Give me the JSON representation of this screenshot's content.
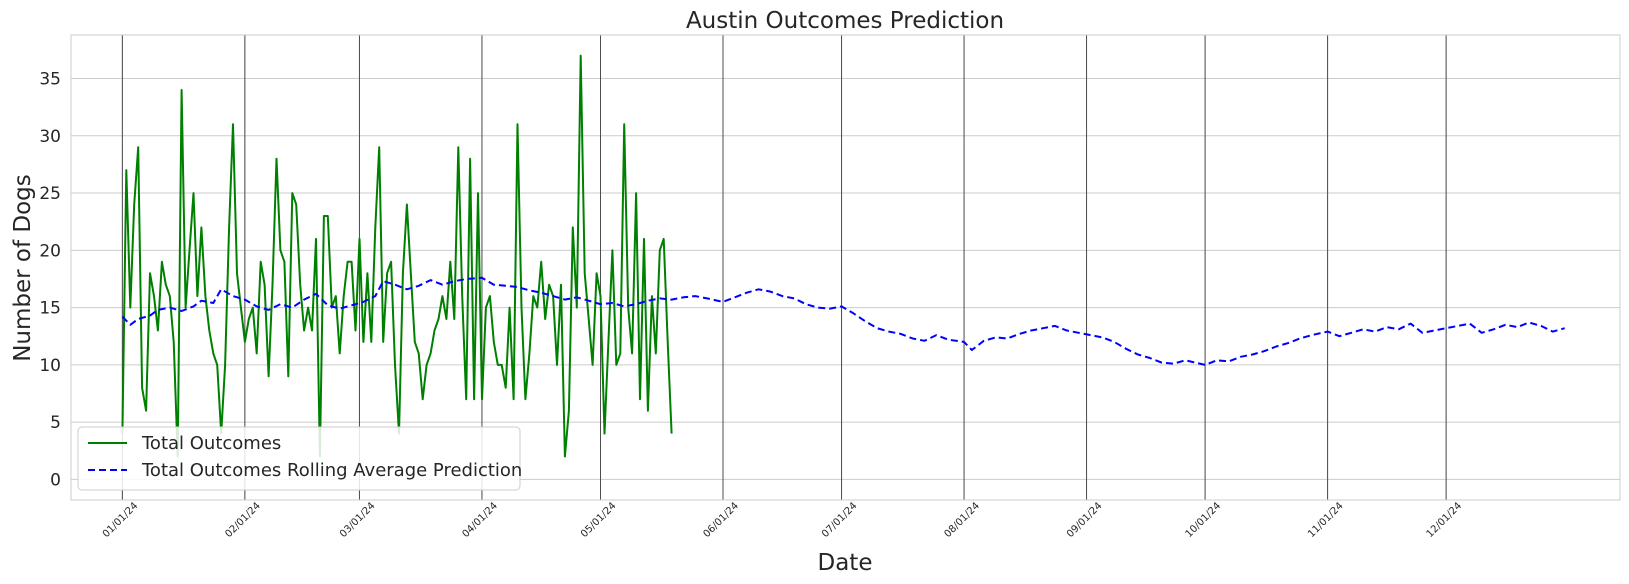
{
  "chart_data": {
    "type": "line",
    "title": "Austin Outcomes Prediction",
    "xlabel": "Date",
    "ylabel": "Number of Dogs",
    "x_type": "date",
    "xlim": [
      "2023-12-19",
      "2025-01-14"
    ],
    "ylim": [
      -1.8,
      38.8
    ],
    "y_ticks": [
      0,
      5,
      10,
      15,
      20,
      25,
      30,
      35
    ],
    "x_ticks": [
      {
        "date": "2024-01-01",
        "label": "01/01/24"
      },
      {
        "date": "2024-02-01",
        "label": "02/01/24"
      },
      {
        "date": "2024-03-01",
        "label": "03/01/24"
      },
      {
        "date": "2024-04-01",
        "label": "04/01/24"
      },
      {
        "date": "2024-05-01",
        "label": "05/01/24"
      },
      {
        "date": "2024-06-01",
        "label": "06/01/24"
      },
      {
        "date": "2024-07-01",
        "label": "07/01/24"
      },
      {
        "date": "2024-08-01",
        "label": "08/01/24"
      },
      {
        "date": "2024-09-01",
        "label": "09/01/24"
      },
      {
        "date": "2024-10-01",
        "label": "10/01/24"
      },
      {
        "date": "2024-11-01",
        "label": "11/01/24"
      },
      {
        "date": "2024-12-01",
        "label": "12/01/24"
      }
    ],
    "grid": true,
    "month_lines": [
      "2024-01-01",
      "2024-02-01",
      "2024-03-01",
      "2024-04-01",
      "2024-05-01",
      "2024-06-01",
      "2024-07-01",
      "2024-08-01",
      "2024-09-01",
      "2024-10-01",
      "2024-11-01",
      "2024-12-01"
    ],
    "legend_position": "bottom-left",
    "series": [
      {
        "name": "Total Outcomes",
        "color": "#008000",
        "dash": "solid",
        "points": [
          [
            "2024-01-01",
            4
          ],
          [
            "2024-01-02",
            27
          ],
          [
            "2024-01-03",
            15
          ],
          [
            "2024-01-04",
            24
          ],
          [
            "2024-01-05",
            29
          ],
          [
            "2024-01-06",
            8
          ],
          [
            "2024-01-07",
            6
          ],
          [
            "2024-01-08",
            18
          ],
          [
            "2024-01-09",
            16
          ],
          [
            "2024-01-10",
            13
          ],
          [
            "2024-01-11",
            19
          ],
          [
            "2024-01-12",
            17
          ],
          [
            "2024-01-13",
            16
          ],
          [
            "2024-01-14",
            12
          ],
          [
            "2024-01-15",
            2
          ],
          [
            "2024-01-16",
            34
          ],
          [
            "2024-01-17",
            15
          ],
          [
            "2024-01-18",
            20
          ],
          [
            "2024-01-19",
            25
          ],
          [
            "2024-01-20",
            16
          ],
          [
            "2024-01-21",
            22
          ],
          [
            "2024-01-22",
            16
          ],
          [
            "2024-01-23",
            13
          ],
          [
            "2024-01-24",
            11
          ],
          [
            "2024-01-25",
            10
          ],
          [
            "2024-01-26",
            4
          ],
          [
            "2024-01-27",
            10
          ],
          [
            "2024-01-28",
            22
          ],
          [
            "2024-01-29",
            31
          ],
          [
            "2024-01-30",
            18
          ],
          [
            "2024-01-31",
            15
          ],
          [
            "2024-02-01",
            12
          ],
          [
            "2024-02-02",
            14
          ],
          [
            "2024-02-03",
            15
          ],
          [
            "2024-02-04",
            11
          ],
          [
            "2024-02-05",
            19
          ],
          [
            "2024-02-06",
            17
          ],
          [
            "2024-02-07",
            9
          ],
          [
            "2024-02-08",
            17
          ],
          [
            "2024-02-09",
            28
          ],
          [
            "2024-02-10",
            20
          ],
          [
            "2024-02-11",
            19
          ],
          [
            "2024-02-12",
            9
          ],
          [
            "2024-02-13",
            25
          ],
          [
            "2024-02-14",
            24
          ],
          [
            "2024-02-15",
            17
          ],
          [
            "2024-02-16",
            13
          ],
          [
            "2024-02-17",
            15
          ],
          [
            "2024-02-18",
            13
          ],
          [
            "2024-02-19",
            21
          ],
          [
            "2024-02-20",
            2
          ],
          [
            "2024-02-21",
            23
          ],
          [
            "2024-02-22",
            23
          ],
          [
            "2024-02-23",
            15
          ],
          [
            "2024-02-24",
            16
          ],
          [
            "2024-02-25",
            11
          ],
          [
            "2024-02-26",
            16
          ],
          [
            "2024-02-27",
            19
          ],
          [
            "2024-02-28",
            19
          ],
          [
            "2024-02-29",
            13
          ],
          [
            "2024-03-01",
            21
          ],
          [
            "2024-03-02",
            12
          ],
          [
            "2024-03-03",
            18
          ],
          [
            "2024-03-04",
            12
          ],
          [
            "2024-03-05",
            22
          ],
          [
            "2024-03-06",
            29
          ],
          [
            "2024-03-07",
            12
          ],
          [
            "2024-03-08",
            18
          ],
          [
            "2024-03-09",
            19
          ],
          [
            "2024-03-10",
            10
          ],
          [
            "2024-03-11",
            4
          ],
          [
            "2024-03-12",
            18
          ],
          [
            "2024-03-13",
            24
          ],
          [
            "2024-03-14",
            18
          ],
          [
            "2024-03-15",
            12
          ],
          [
            "2024-03-16",
            11
          ],
          [
            "2024-03-17",
            7
          ],
          [
            "2024-03-18",
            10
          ],
          [
            "2024-03-19",
            11
          ],
          [
            "2024-03-20",
            13
          ],
          [
            "2024-03-21",
            14
          ],
          [
            "2024-03-22",
            16
          ],
          [
            "2024-03-23",
            14
          ],
          [
            "2024-03-24",
            19
          ],
          [
            "2024-03-25",
            14
          ],
          [
            "2024-03-26",
            29
          ],
          [
            "2024-03-27",
            16
          ],
          [
            "2024-03-28",
            7
          ],
          [
            "2024-03-29",
            28
          ],
          [
            "2024-03-30",
            7
          ],
          [
            "2024-03-31",
            25
          ],
          [
            "2024-04-01",
            7
          ],
          [
            "2024-04-02",
            15
          ],
          [
            "2024-04-03",
            16
          ],
          [
            "2024-04-04",
            12
          ],
          [
            "2024-04-05",
            10
          ],
          [
            "2024-04-06",
            10
          ],
          [
            "2024-04-07",
            8
          ],
          [
            "2024-04-08",
            15
          ],
          [
            "2024-04-09",
            7
          ],
          [
            "2024-04-10",
            31
          ],
          [
            "2024-04-11",
            15
          ],
          [
            "2024-04-12",
            7
          ],
          [
            "2024-04-13",
            11
          ],
          [
            "2024-04-14",
            16
          ],
          [
            "2024-04-15",
            15
          ],
          [
            "2024-04-16",
            19
          ],
          [
            "2024-04-17",
            14
          ],
          [
            "2024-04-18",
            17
          ],
          [
            "2024-04-19",
            16
          ],
          [
            "2024-04-20",
            10
          ],
          [
            "2024-04-21",
            17
          ],
          [
            "2024-04-22",
            2
          ],
          [
            "2024-04-23",
            6
          ],
          [
            "2024-04-24",
            22
          ],
          [
            "2024-04-25",
            15
          ],
          [
            "2024-04-26",
            37
          ],
          [
            "2024-04-27",
            18
          ],
          [
            "2024-04-28",
            14
          ],
          [
            "2024-04-29",
            10
          ],
          [
            "2024-04-30",
            18
          ],
          [
            "2024-05-01",
            16
          ],
          [
            "2024-05-02",
            4
          ],
          [
            "2024-05-03",
            12
          ],
          [
            "2024-05-04",
            20
          ],
          [
            "2024-05-05",
            10
          ],
          [
            "2024-05-06",
            11
          ],
          [
            "2024-05-07",
            31
          ],
          [
            "2024-05-08",
            15
          ],
          [
            "2024-05-09",
            11
          ],
          [
            "2024-05-10",
            25
          ],
          [
            "2024-05-11",
            7
          ],
          [
            "2024-05-12",
            21
          ],
          [
            "2024-05-13",
            6
          ],
          [
            "2024-05-14",
            16
          ],
          [
            "2024-05-15",
            11
          ],
          [
            "2024-05-16",
            20
          ],
          [
            "2024-05-17",
            21
          ],
          [
            "2024-05-18",
            12
          ],
          [
            "2024-05-19",
            4
          ]
        ]
      },
      {
        "name": "Total Outcomes Rolling Average Prediction",
        "color": "#0000ff",
        "dash": "dashed",
        "points": [
          [
            "2024-01-01",
            14.2
          ],
          [
            "2024-01-03",
            13.5
          ],
          [
            "2024-01-05",
            14.0
          ],
          [
            "2024-01-08",
            14.3
          ],
          [
            "2024-01-10",
            14.8
          ],
          [
            "2024-01-13",
            15.0
          ],
          [
            "2024-01-16",
            14.7
          ],
          [
            "2024-01-19",
            15.1
          ],
          [
            "2024-01-21",
            15.6
          ],
          [
            "2024-01-24",
            15.4
          ],
          [
            "2024-01-26",
            16.6
          ],
          [
            "2024-01-29",
            16.0
          ],
          [
            "2024-02-01",
            15.7
          ],
          [
            "2024-02-04",
            15.1
          ],
          [
            "2024-02-07",
            14.8
          ],
          [
            "2024-02-10",
            15.3
          ],
          [
            "2024-02-13",
            15.0
          ],
          [
            "2024-02-16",
            15.7
          ],
          [
            "2024-02-19",
            16.2
          ],
          [
            "2024-02-22",
            15.2
          ],
          [
            "2024-02-25",
            14.9
          ],
          [
            "2024-02-28",
            15.2
          ],
          [
            "2024-03-02",
            15.5
          ],
          [
            "2024-03-05",
            16.0
          ],
          [
            "2024-03-07",
            17.3
          ],
          [
            "2024-03-10",
            17.0
          ],
          [
            "2024-03-13",
            16.6
          ],
          [
            "2024-03-16",
            16.9
          ],
          [
            "2024-03-19",
            17.4
          ],
          [
            "2024-03-22",
            17.0
          ],
          [
            "2024-03-25",
            17.3
          ],
          [
            "2024-03-28",
            17.5
          ],
          [
            "2024-04-01",
            17.6
          ],
          [
            "2024-04-04",
            17.0
          ],
          [
            "2024-04-07",
            16.9
          ],
          [
            "2024-04-10",
            16.8
          ],
          [
            "2024-04-13",
            16.5
          ],
          [
            "2024-04-16",
            16.3
          ],
          [
            "2024-04-19",
            16.0
          ],
          [
            "2024-04-22",
            15.7
          ],
          [
            "2024-04-25",
            15.9
          ],
          [
            "2024-04-28",
            15.6
          ],
          [
            "2024-05-01",
            15.3
          ],
          [
            "2024-05-04",
            15.4
          ],
          [
            "2024-05-07",
            15.1
          ],
          [
            "2024-05-10",
            15.3
          ],
          [
            "2024-05-13",
            15.6
          ],
          [
            "2024-05-16",
            15.8
          ],
          [
            "2024-05-19",
            15.7
          ],
          [
            "2024-05-22",
            15.9
          ],
          [
            "2024-05-25",
            16.0
          ],
          [
            "2024-05-28",
            15.8
          ],
          [
            "2024-06-01",
            15.5
          ],
          [
            "2024-06-04",
            15.9
          ],
          [
            "2024-06-07",
            16.3
          ],
          [
            "2024-06-10",
            16.6
          ],
          [
            "2024-06-13",
            16.4
          ],
          [
            "2024-06-16",
            16.0
          ],
          [
            "2024-06-19",
            15.8
          ],
          [
            "2024-06-22",
            15.3
          ],
          [
            "2024-06-25",
            15.0
          ],
          [
            "2024-06-28",
            14.9
          ],
          [
            "2024-07-01",
            15.1
          ],
          [
            "2024-07-04",
            14.5
          ],
          [
            "2024-07-07",
            13.8
          ],
          [
            "2024-07-10",
            13.2
          ],
          [
            "2024-07-13",
            12.9
          ],
          [
            "2024-07-16",
            12.7
          ],
          [
            "2024-07-19",
            12.3
          ],
          [
            "2024-07-22",
            12.1
          ],
          [
            "2024-07-25",
            12.6
          ],
          [
            "2024-07-28",
            12.2
          ],
          [
            "2024-08-01",
            12.0
          ],
          [
            "2024-08-03",
            11.3
          ],
          [
            "2024-08-06",
            12.1
          ],
          [
            "2024-08-09",
            12.4
          ],
          [
            "2024-08-12",
            12.3
          ],
          [
            "2024-08-15",
            12.7
          ],
          [
            "2024-08-18",
            13.0
          ],
          [
            "2024-08-21",
            13.2
          ],
          [
            "2024-08-24",
            13.4
          ],
          [
            "2024-08-27",
            13.0
          ],
          [
            "2024-08-30",
            12.8
          ],
          [
            "2024-09-02",
            12.6
          ],
          [
            "2024-09-05",
            12.4
          ],
          [
            "2024-09-08",
            12.0
          ],
          [
            "2024-09-11",
            11.4
          ],
          [
            "2024-09-14",
            10.9
          ],
          [
            "2024-09-17",
            10.6
          ],
          [
            "2024-09-20",
            10.2
          ],
          [
            "2024-09-23",
            10.1
          ],
          [
            "2024-09-26",
            10.4
          ],
          [
            "2024-10-01",
            10.0
          ],
          [
            "2024-10-04",
            10.4
          ],
          [
            "2024-10-07",
            10.3
          ],
          [
            "2024-10-10",
            10.7
          ],
          [
            "2024-10-13",
            10.9
          ],
          [
            "2024-10-16",
            11.2
          ],
          [
            "2024-10-19",
            11.6
          ],
          [
            "2024-10-22",
            11.9
          ],
          [
            "2024-10-25",
            12.3
          ],
          [
            "2024-10-28",
            12.6
          ],
          [
            "2024-11-01",
            12.9
          ],
          [
            "2024-11-04",
            12.5
          ],
          [
            "2024-11-07",
            12.8
          ],
          [
            "2024-11-10",
            13.1
          ],
          [
            "2024-11-13",
            12.9
          ],
          [
            "2024-11-16",
            13.3
          ],
          [
            "2024-11-19",
            13.1
          ],
          [
            "2024-11-22",
            13.6
          ],
          [
            "2024-11-25",
            12.8
          ],
          [
            "2024-11-28",
            13.0
          ],
          [
            "2024-12-01",
            13.2
          ],
          [
            "2024-12-04",
            13.4
          ],
          [
            "2024-12-07",
            13.6
          ],
          [
            "2024-12-10",
            12.8
          ],
          [
            "2024-12-13",
            13.1
          ],
          [
            "2024-12-16",
            13.5
          ],
          [
            "2024-12-19",
            13.3
          ],
          [
            "2024-12-22",
            13.7
          ],
          [
            "2024-12-25",
            13.4
          ],
          [
            "2024-12-28",
            12.9
          ],
          [
            "2024-12-31",
            13.2
          ]
        ]
      }
    ]
  }
}
